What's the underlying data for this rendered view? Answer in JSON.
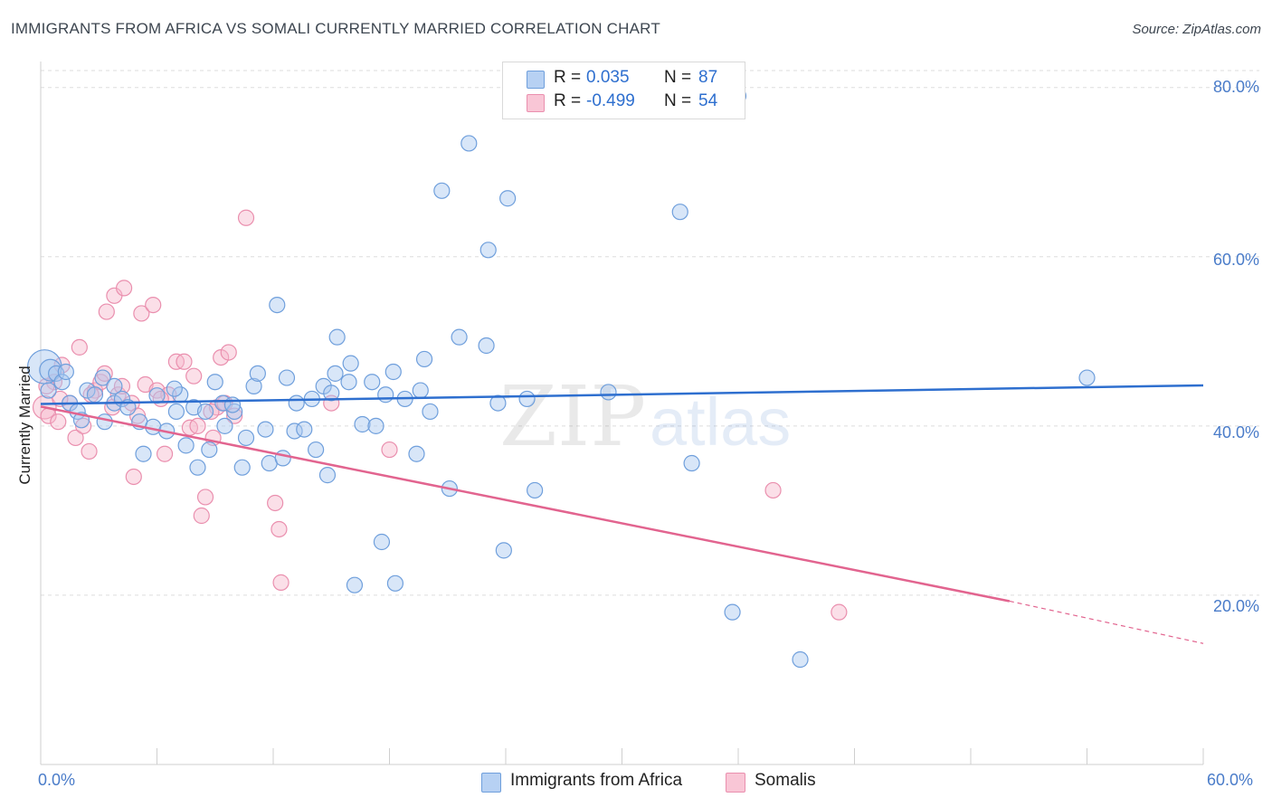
{
  "header": {
    "title": "IMMIGRANTS FROM AFRICA VS SOMALI CURRENTLY MARRIED CORRELATION CHART",
    "source": "Source: ZipAtlas.com"
  },
  "watermark": {
    "zip": "ZIP",
    "atlas": "atlas"
  },
  "legend_top": {
    "rows": [
      {
        "r_label": "R =",
        "r_value": "0.035",
        "n_label": "N =",
        "n_value": "87"
      },
      {
        "r_label": "R =",
        "r_value": "-0.499",
        "n_label": "N =",
        "n_value": "54"
      }
    ]
  },
  "legend_bottom": {
    "items": [
      {
        "label": "Immigrants from Africa"
      },
      {
        "label": "Somalis"
      }
    ]
  },
  "colors": {
    "blue_fill": "#a9c8f0",
    "blue_stroke": "#6f9fdc",
    "blue_line": "#2e6fcf",
    "pink_fill": "#f7b8cc",
    "pink_stroke": "#ea8fae",
    "pink_line": "#e2648f",
    "grid": "#dddddd",
    "axis_text": "#4a7cc9"
  },
  "chart_data": {
    "type": "scatter",
    "title": "IMMIGRANTS FROM AFRICA VS SOMALI CURRENTLY MARRIED CORRELATION CHART",
    "xlabel": "",
    "ylabel": "Currently Married",
    "xlim": [
      0,
      60
    ],
    "ylim": [
      0,
      82
    ],
    "x_tick_labels": [
      "0.0%",
      "60.0%"
    ],
    "y_tick_labels": [
      "20.0%",
      "40.0%",
      "60.0%",
      "80.0%"
    ],
    "y_ticks": [
      20,
      40,
      60,
      80
    ],
    "grid": true,
    "legend": "top-center",
    "series": [
      {
        "name": "Immigrants from Africa",
        "color": "#6f9fdc",
        "r": 0.035,
        "n": 87,
        "trend": {
          "x": [
            0,
            60
          ],
          "y": [
            42.6,
            44.8
          ]
        },
        "points": [
          [
            0.2,
            47.0,
            2.2
          ],
          [
            0.5,
            46.6,
            1.4
          ],
          [
            0.8,
            46.2,
            1.0
          ],
          [
            1.1,
            45.2,
            1.0
          ],
          [
            1.5,
            42.7,
            1.0
          ],
          [
            1.9,
            41.7,
            1.0
          ],
          [
            2.4,
            44.2,
            1.0
          ],
          [
            2.8,
            43.7,
            1.0
          ],
          [
            3.2,
            45.7,
            1.0
          ],
          [
            3.3,
            40.5,
            1.0
          ],
          [
            3.8,
            44.7,
            1.0
          ],
          [
            3.8,
            42.7,
            1.0
          ],
          [
            4.2,
            43.2,
            1.0
          ],
          [
            4.5,
            42.2,
            1.0
          ],
          [
            5.1,
            40.5,
            1.0
          ],
          [
            5.3,
            36.7,
            1.0
          ],
          [
            5.8,
            39.9,
            1.0
          ],
          [
            6.0,
            43.6,
            1.0
          ],
          [
            6.5,
            39.4,
            1.0
          ],
          [
            7.0,
            41.7,
            1.0
          ],
          [
            7.2,
            43.7,
            1.0
          ],
          [
            7.5,
            37.7,
            1.0
          ],
          [
            7.9,
            42.2,
            1.0
          ],
          [
            8.1,
            35.1,
            1.0
          ],
          [
            8.5,
            41.7,
            1.0
          ],
          [
            8.7,
            37.2,
            1.0
          ],
          [
            9.0,
            45.2,
            1.0
          ],
          [
            9.4,
            42.7,
            1.0
          ],
          [
            9.5,
            40.0,
            1.0
          ],
          [
            10.0,
            41.7,
            1.0
          ],
          [
            10.4,
            35.1,
            1.0
          ],
          [
            10.6,
            38.6,
            1.0
          ],
          [
            11.0,
            44.7,
            1.0
          ],
          [
            11.2,
            46.2,
            1.0
          ],
          [
            11.6,
            39.6,
            1.0
          ],
          [
            11.8,
            35.6,
            1.0
          ],
          [
            12.2,
            54.3,
            1.0
          ],
          [
            12.5,
            36.2,
            1.0
          ],
          [
            12.7,
            45.7,
            1.0
          ],
          [
            13.1,
            39.4,
            1.0
          ],
          [
            13.2,
            42.7,
            1.0
          ],
          [
            13.6,
            39.6,
            1.0
          ],
          [
            14.0,
            43.2,
            1.0
          ],
          [
            14.2,
            37.2,
            1.0
          ],
          [
            14.6,
            44.7,
            1.0
          ],
          [
            14.8,
            34.2,
            1.0
          ],
          [
            15.2,
            46.2,
            1.0
          ],
          [
            15.3,
            50.5,
            1.0
          ],
          [
            15.9,
            45.2,
            1.0
          ],
          [
            16.0,
            47.4,
            1.0
          ],
          [
            16.2,
            21.2,
            1.0
          ],
          [
            16.6,
            40.2,
            1.0
          ],
          [
            17.1,
            45.2,
            1.0
          ],
          [
            17.3,
            40.0,
            1.0
          ],
          [
            17.6,
            26.3,
            1.0
          ],
          [
            17.8,
            43.7,
            1.0
          ],
          [
            18.2,
            46.4,
            1.0
          ],
          [
            18.3,
            21.4,
            1.0
          ],
          [
            18.8,
            43.2,
            1.0
          ],
          [
            19.4,
            36.7,
            1.0
          ],
          [
            19.6,
            44.2,
            1.0
          ],
          [
            19.8,
            47.9,
            1.0
          ],
          [
            20.1,
            41.7,
            1.0
          ],
          [
            20.7,
            67.8,
            1.0
          ],
          [
            21.1,
            32.6,
            1.0
          ],
          [
            21.6,
            50.5,
            1.0
          ],
          [
            22.1,
            73.4,
            1.0
          ],
          [
            23.0,
            49.5,
            1.0
          ],
          [
            23.1,
            60.8,
            1.0
          ],
          [
            23.6,
            42.7,
            1.0
          ],
          [
            23.9,
            25.3,
            1.0
          ],
          [
            24.1,
            66.9,
            1.0
          ],
          [
            25.1,
            43.2,
            1.0
          ],
          [
            25.5,
            32.4,
            1.0
          ],
          [
            29.3,
            44.0,
            1.0
          ],
          [
            33.0,
            65.3,
            1.0
          ],
          [
            33.6,
            35.6,
            1.0
          ],
          [
            35.7,
            18.0,
            1.0
          ],
          [
            36.0,
            79.0,
            1.0
          ],
          [
            39.2,
            12.4,
            1.0
          ],
          [
            54.0,
            45.7,
            1.0
          ],
          [
            0.4,
            44.2,
            1.0
          ],
          [
            1.3,
            46.4,
            1.0
          ],
          [
            2.1,
            40.7,
            1.0
          ],
          [
            6.9,
            44.4,
            1.0
          ],
          [
            9.9,
            42.5,
            1.0
          ],
          [
            15.0,
            43.9,
            1.0
          ]
        ]
      },
      {
        "name": "Somalis",
        "color": "#ea8fae",
        "r": -0.499,
        "n": 54,
        "trend": {
          "x": [
            0,
            50.0
          ],
          "y": [
            42.3,
            19.3
          ],
          "dashed_x": [
            50.0,
            60
          ],
          "dashed_y": [
            19.3,
            14.3
          ]
        },
        "points": [
          [
            0.2,
            42.2,
            1.5
          ],
          [
            0.4,
            41.2,
            1.0
          ],
          [
            0.7,
            45.2,
            1.0
          ],
          [
            0.9,
            40.5,
            1.0
          ],
          [
            1.1,
            47.2,
            1.0
          ],
          [
            1.5,
            42.7,
            1.0
          ],
          [
            1.8,
            38.6,
            1.0
          ],
          [
            2.0,
            49.3,
            1.0
          ],
          [
            2.2,
            40.0,
            1.0
          ],
          [
            2.5,
            37.0,
            1.0
          ],
          [
            2.8,
            44.2,
            1.0
          ],
          [
            3.1,
            45.2,
            1.0
          ],
          [
            3.3,
            46.2,
            1.0
          ],
          [
            3.4,
            53.5,
            1.0
          ],
          [
            3.7,
            42.2,
            1.0
          ],
          [
            3.8,
            55.4,
            1.0
          ],
          [
            4.0,
            43.7,
            1.0
          ],
          [
            4.2,
            44.7,
            1.0
          ],
          [
            4.3,
            56.3,
            1.0
          ],
          [
            4.7,
            42.7,
            1.0
          ],
          [
            4.8,
            34.0,
            1.0
          ],
          [
            5.0,
            41.2,
            1.0
          ],
          [
            5.2,
            53.3,
            1.0
          ],
          [
            5.4,
            44.9,
            1.0
          ],
          [
            5.8,
            54.3,
            1.0
          ],
          [
            6.0,
            44.2,
            1.0
          ],
          [
            6.4,
            36.7,
            1.0
          ],
          [
            6.6,
            43.7,
            1.0
          ],
          [
            7.0,
            47.6,
            1.0
          ],
          [
            7.4,
            47.6,
            1.0
          ],
          [
            7.7,
            39.8,
            1.0
          ],
          [
            7.9,
            45.9,
            1.0
          ],
          [
            8.1,
            40.0,
            1.0
          ],
          [
            8.3,
            29.4,
            1.0
          ],
          [
            8.5,
            31.6,
            1.0
          ],
          [
            8.9,
            38.6,
            1.0
          ],
          [
            9.1,
            42.2,
            1.0
          ],
          [
            9.3,
            48.1,
            1.0
          ],
          [
            9.5,
            42.7,
            1.0
          ],
          [
            9.7,
            48.7,
            1.0
          ],
          [
            10.0,
            41.2,
            1.0
          ],
          [
            10.6,
            64.6,
            1.0
          ],
          [
            12.1,
            30.9,
            1.0
          ],
          [
            12.3,
            27.8,
            1.0
          ],
          [
            12.4,
            21.5,
            1.0
          ],
          [
            15.0,
            42.7,
            1.0
          ],
          [
            18.0,
            37.2,
            1.0
          ],
          [
            37.8,
            32.4,
            1.0
          ],
          [
            41.2,
            18.0,
            1.0
          ],
          [
            0.3,
            44.7,
            1.0
          ],
          [
            1.0,
            43.2,
            1.0
          ],
          [
            2.6,
            43.7,
            1.0
          ],
          [
            6.2,
            43.2,
            1.0
          ],
          [
            8.8,
            41.7,
            1.0
          ]
        ]
      }
    ]
  }
}
